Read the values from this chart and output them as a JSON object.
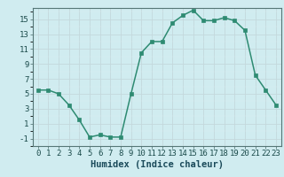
{
  "x": [
    0,
    1,
    2,
    3,
    4,
    5,
    6,
    7,
    8,
    9,
    10,
    11,
    12,
    13,
    14,
    15,
    16,
    17,
    18,
    19,
    20,
    21,
    22,
    23
  ],
  "y": [
    5.5,
    5.5,
    5.0,
    3.5,
    1.5,
    -0.8,
    -0.5,
    -0.8,
    -0.8,
    5.0,
    10.5,
    12.0,
    12.0,
    14.5,
    15.5,
    16.2,
    14.8,
    14.8,
    15.2,
    14.8,
    13.5,
    7.5,
    5.5,
    3.5
  ],
  "title": "",
  "xlabel": "Humidex (Indice chaleur)",
  "ylabel": "",
  "xlim": [
    -0.5,
    23.5
  ],
  "ylim": [
    -2.0,
    16.5
  ],
  "yticks": [
    -1,
    1,
    3,
    5,
    7,
    9,
    11,
    13,
    15
  ],
  "xticks": [
    0,
    1,
    2,
    3,
    4,
    5,
    6,
    7,
    8,
    9,
    10,
    11,
    12,
    13,
    14,
    15,
    16,
    17,
    18,
    19,
    20,
    21,
    22,
    23
  ],
  "line_color": "#2e8b72",
  "marker_color": "#2e8b72",
  "bg_color": "#d0ecf0",
  "grid_color_major": "#c4d8dc",
  "grid_color_minor": "#daeef2",
  "tick_label_fontsize": 6.5,
  "xlabel_fontsize": 7.5
}
